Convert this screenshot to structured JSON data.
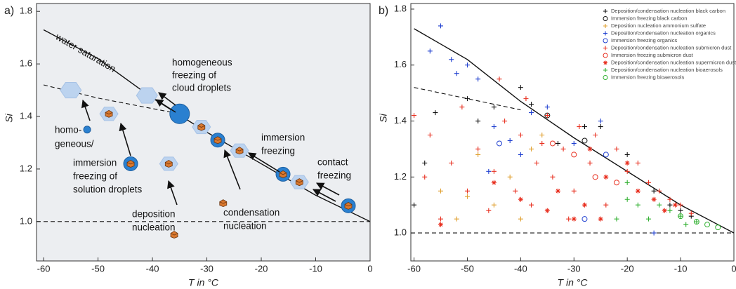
{
  "chart_data": [
    {
      "type": "schematic",
      "panel_label": "a)",
      "x_label": "T in °C",
      "y_label": "Si",
      "xlim": [
        -61.3,
        0
      ],
      "ylim": [
        0.85,
        1.83
      ],
      "xticks": [
        -60,
        -50,
        -40,
        -30,
        -20,
        -10,
        0
      ],
      "yticks": [
        {
          "value": 1.0,
          "label": "1.0"
        },
        {
          "value": 1.2,
          "label": "1.2"
        },
        {
          "value": 1.4,
          "label": "1.4"
        },
        {
          "value": 1.6,
          "label": "1.6"
        },
        {
          "value": 1.8,
          "label": "1.8"
        }
      ],
      "lines": [
        {
          "style": "solid",
          "x": [
            -60,
            -50,
            -40,
            -30,
            -20,
            -10,
            0
          ],
          "y": [
            1.73,
            1.62,
            1.47,
            1.34,
            1.22,
            1.1,
            1.0
          ]
        },
        {
          "style": "dashed",
          "x": [
            -60,
            -50,
            -40,
            -35
          ],
          "y": [
            1.52,
            1.47,
            1.43,
            1.41
          ]
        },
        {
          "style": "dashed",
          "x": [
            -61.3,
            0
          ],
          "y": [
            1.0,
            1.0
          ]
        }
      ],
      "points": [
        {
          "kind": "crystal",
          "x": -55,
          "y": 1.5
        },
        {
          "kind": "droplet",
          "x": -52,
          "y": 1.35
        },
        {
          "kind": "crystal-cube",
          "x": -48,
          "y": 1.41
        },
        {
          "kind": "droplet-cube",
          "x": -44,
          "y": 1.22
        },
        {
          "kind": "crystal",
          "x": -41,
          "y": 1.48
        },
        {
          "kind": "crystal-cube",
          "x": -37,
          "y": 1.22
        },
        {
          "kind": "cube",
          "x": -36,
          "y": 0.95
        },
        {
          "kind": "droplet",
          "x": -35,
          "y": 1.41
        },
        {
          "kind": "crystal-cube",
          "x": -31,
          "y": 1.36
        },
        {
          "kind": "droplet-cube",
          "x": -28,
          "y": 1.31
        },
        {
          "kind": "cube",
          "x": -27,
          "y": 1.07
        },
        {
          "kind": "crystal-cube",
          "x": -24,
          "y": 1.27
        },
        {
          "kind": "droplet-cube",
          "x": -16,
          "y": 1.18
        },
        {
          "kind": "crystal-cube",
          "x": -13,
          "y": 1.15
        },
        {
          "kind": "droplet-cube",
          "x": -4,
          "y": 1.06
        }
      ],
      "annotations": [
        {
          "lines": [
            "water saturation"
          ]
        },
        {
          "lines": [
            "homogeneous",
            "freezing of",
            "cloud droplets"
          ]
        },
        {
          "lines": [
            "homo-",
            "geneous/"
          ]
        },
        {
          "lines": [
            "immersion",
            "freezing of",
            "solution droplets"
          ]
        },
        {
          "lines": [
            "deposition",
            "nucleation"
          ]
        },
        {
          "lines": [
            "condensation",
            "nucleation"
          ]
        },
        {
          "lines": [
            "immersion",
            "freezing"
          ]
        },
        {
          "lines": [
            "contact",
            "freezing"
          ]
        }
      ]
    },
    {
      "type": "scatter",
      "panel_label": "b)",
      "x_label": "T in °C",
      "y_label": "Si",
      "xlim": [
        -60.6,
        0
      ],
      "ylim": [
        0.9,
        1.82
      ],
      "xticks": [
        -60,
        -50,
        -40,
        -30,
        -20,
        -10,
        0
      ],
      "yticks": [
        {
          "value": 1.0,
          "label": "1.0"
        },
        {
          "value": 1.2,
          "label": "1.2"
        },
        {
          "value": 1.4,
          "label": "1.4"
        },
        {
          "value": 1.6,
          "label": "1.6"
        },
        {
          "value": 1.8,
          "label": "1.8"
        }
      ],
      "lines": [
        {
          "style": "solid",
          "x": [
            -60,
            -50,
            -40,
            -30,
            -20,
            -10,
            0
          ],
          "y": [
            1.73,
            1.62,
            1.47,
            1.34,
            1.22,
            1.1,
            1.0
          ]
        },
        {
          "style": "dashed",
          "x": [
            -60,
            -50,
            -40
          ],
          "y": [
            1.52,
            1.48,
            1.44
          ]
        },
        {
          "style": "dashed",
          "x": [
            -60.6,
            0
          ],
          "y": [
            1.0,
            1.0
          ]
        }
      ],
      "series": [
        {
          "name": "Deposition/condensation nucleation black carbon",
          "color": "#111111",
          "marker": "plus",
          "x": [
            -60,
            -58,
            -56,
            -50,
            -48,
            -45,
            -40,
            -38,
            -33,
            -28,
            -25,
            -20,
            -15,
            -12,
            -10,
            -8
          ],
          "y": [
            1.1,
            1.25,
            1.43,
            1.48,
            1.4,
            1.45,
            1.52,
            1.46,
            1.32,
            1.38,
            1.38,
            1.28,
            1.15,
            1.1,
            1.08,
            1.06
          ]
        },
        {
          "name": "Immersion freezing black carbon",
          "color": "#111111",
          "marker": "circle",
          "x": [
            -35,
            -28
          ],
          "y": [
            1.42,
            1.33
          ]
        },
        {
          "name": "Deposition nucleation ammonium sulfate",
          "color": "#e0a030",
          "marker": "plus",
          "x": [
            -55,
            -52,
            -50,
            -48,
            -45,
            -42,
            -40,
            -38,
            -36
          ],
          "y": [
            1.15,
            1.05,
            1.13,
            1.28,
            1.1,
            1.2,
            1.05,
            1.3,
            1.35
          ]
        },
        {
          "name": "Deposition/condensation nucleation organics",
          "color": "#2040d0",
          "marker": "plus",
          "x": [
            -57,
            -55,
            -53,
            -52,
            -50,
            -48,
            -46,
            -45,
            -42,
            -40,
            -38,
            -35,
            -30,
            -25,
            -15
          ],
          "y": [
            1.65,
            1.74,
            1.62,
            1.57,
            1.6,
            1.55,
            1.22,
            1.38,
            1.33,
            1.28,
            1.43,
            1.45,
            1.32,
            1.4,
            1.0
          ]
        },
        {
          "name": "Immersion freezing organics",
          "color": "#2040d0",
          "marker": "circle",
          "x": [
            -44,
            -28,
            -24
          ],
          "y": [
            1.32,
            1.05,
            1.28
          ]
        },
        {
          "name": "Deposition/condensation nucleation submicron dust",
          "color": "#e83020",
          "marker": "plus",
          "x": [
            -60,
            -58,
            -57,
            -55,
            -53,
            -51,
            -50,
            -48,
            -46,
            -45,
            -44,
            -43,
            -41,
            -40,
            -39,
            -38,
            -37,
            -36,
            -35,
            -34,
            -32,
            -31,
            -30,
            -29,
            -27,
            -26,
            -24,
            -22,
            -20,
            -18,
            -16,
            -14,
            -12,
            -10,
            -8
          ],
          "y": [
            1.42,
            1.2,
            1.35,
            1.05,
            1.25,
            1.45,
            1.15,
            1.3,
            1.08,
            1.22,
            1.55,
            1.4,
            1.15,
            1.35,
            1.48,
            1.1,
            1.25,
            1.32,
            1.42,
            1.2,
            1.3,
            1.05,
            1.15,
            1.38,
            1.25,
            1.35,
            1.1,
            1.3,
            1.22,
            1.25,
            1.18,
            1.15,
            1.12,
            1.1,
            1.07
          ]
        },
        {
          "name": "Immersion freezing submicron dust",
          "color": "#e83020",
          "marker": "circle",
          "x": [
            -34,
            -30,
            -26,
            -22
          ],
          "y": [
            1.32,
            1.28,
            1.2,
            1.18
          ]
        },
        {
          "name": "Deposition/condensation nucleation supermicron dust",
          "color": "#e83020",
          "marker": "star",
          "x": [
            -55,
            -45,
            -40,
            -35,
            -33,
            -30,
            -28,
            -27,
            -25,
            -24,
            -20,
            -18,
            -15,
            -13,
            -11
          ],
          "y": [
            1.03,
            1.18,
            1.12,
            1.08,
            1.15,
            1.05,
            1.1,
            1.3,
            1.05,
            1.2,
            1.25,
            1.15,
            1.12,
            1.08,
            1.1
          ]
        },
        {
          "name": "Deposition/condensation nucleation bioaerosols",
          "color": "#30b030",
          "marker": "plus",
          "x": [
            -22,
            -20,
            -20,
            -18,
            -16,
            -14,
            -12,
            -10,
            -9,
            -7
          ],
          "y": [
            1.05,
            1.12,
            1.18,
            1.1,
            1.05,
            1.1,
            1.08,
            1.06,
            1.03,
            1.04
          ]
        },
        {
          "name": "Immersion freezing bioaerosols",
          "color": "#30b030",
          "marker": "circle",
          "x": [
            -10,
            -7,
            -5,
            -3
          ],
          "y": [
            1.06,
            1.04,
            1.03,
            1.02
          ]
        }
      ]
    }
  ]
}
